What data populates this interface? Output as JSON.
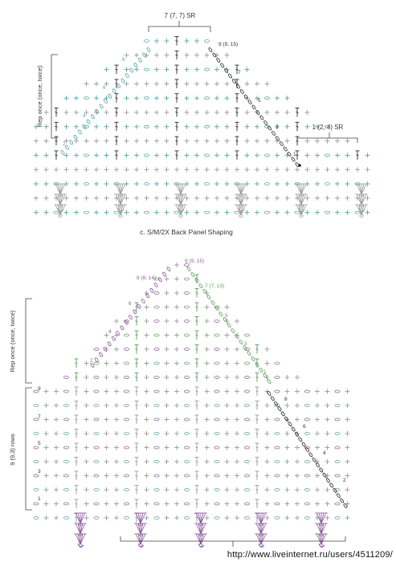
{
  "colors": {
    "teal": "#5aa5a5",
    "gray": "#9a9a9a",
    "dark": "#2b2b2b",
    "purple": "#8c5b9b",
    "green": "#5d9d5d",
    "text": "#333333"
  },
  "top_chart": {
    "top_bracket_label": "7 (7, 7) SR",
    "right_bracket_label": "1 (2, 4) SR",
    "side_label": "Rep once (once, twice)",
    "row_labels": [
      "9 (9, 15)",
      "8",
      "7",
      "6",
      "5",
      "4",
      "3",
      "2",
      "1"
    ],
    "caption": "c. S/M/2X Back Panel Shaping"
  },
  "bottom_chart": {
    "top_row_label": "9 (9, 15)",
    "left_row_labels": [
      "8 (8, 14)",
      "6",
      "4",
      "2"
    ],
    "right_row_labels": [
      "7 (7, 13)",
      "5",
      "3",
      "1"
    ],
    "side_label_top": "Rep once (once, twice)",
    "side_label_bottom": "9 (9,3) rows",
    "left_numbers": [
      "9",
      "7",
      "5",
      "3",
      "1"
    ],
    "right_numbers": [
      "8",
      "6",
      "4",
      "2"
    ]
  },
  "watermark": "http://www.liveinternet.ru/users/4511209/"
}
